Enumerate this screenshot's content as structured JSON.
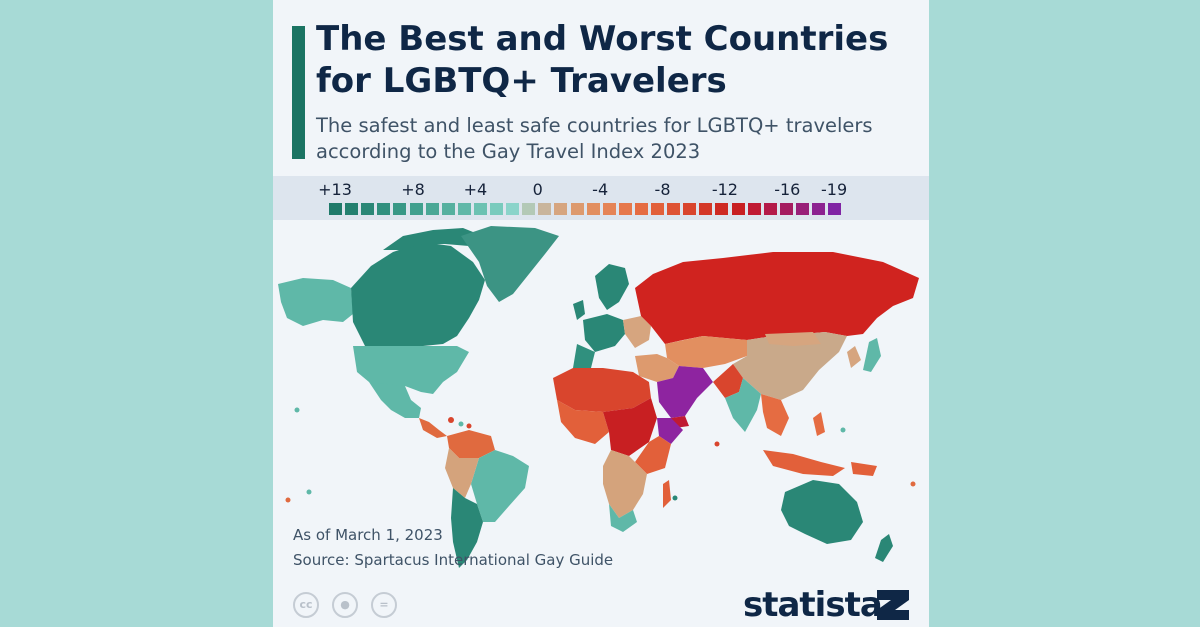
{
  "header": {
    "title": "The Best and Worst Countries for LGBTQ+ Travelers",
    "subtitle": "The safest and least safe countries for LGBTQ+ travelers according to the Gay Travel Index 2023"
  },
  "legend": {
    "tick_labels": [
      "+13",
      "+8",
      "+4",
      "0",
      "-4",
      "-8",
      "-12",
      "-16",
      "-19"
    ],
    "scale_min": 13,
    "scale_max": -19,
    "swatch_colors": [
      "#1f7a6a",
      "#23806f",
      "#2a8776",
      "#30907e",
      "#389886",
      "#40a08e",
      "#4aa896",
      "#55b09f",
      "#60b8a8",
      "#6cc2b2",
      "#79cbbd",
      "#8bd4ca",
      "#b3c9b6",
      "#c9b59c",
      "#d6a57f",
      "#dd9a6e",
      "#e28f60",
      "#e58456",
      "#e6784b",
      "#e56c42",
      "#e2603a",
      "#de5334",
      "#d9452d",
      "#d43828",
      "#ce2a23",
      "#c81f22",
      "#c01a33",
      "#b41a49",
      "#a51c60",
      "#981f78",
      "#8c2290",
      "#8024a4"
    ],
    "colors": {
      "positive": "#2a8776",
      "neutral": "#c7a98a",
      "negative": "#d0231f",
      "worst": "#8e24a0"
    }
  },
  "footer": {
    "as_of": "As of March 1, 2023",
    "source": "Source: Spartacus International Gay Guide",
    "license_icons": [
      "cc-icon",
      "by-icon",
      "nd-icon"
    ],
    "brand": "statista"
  }
}
